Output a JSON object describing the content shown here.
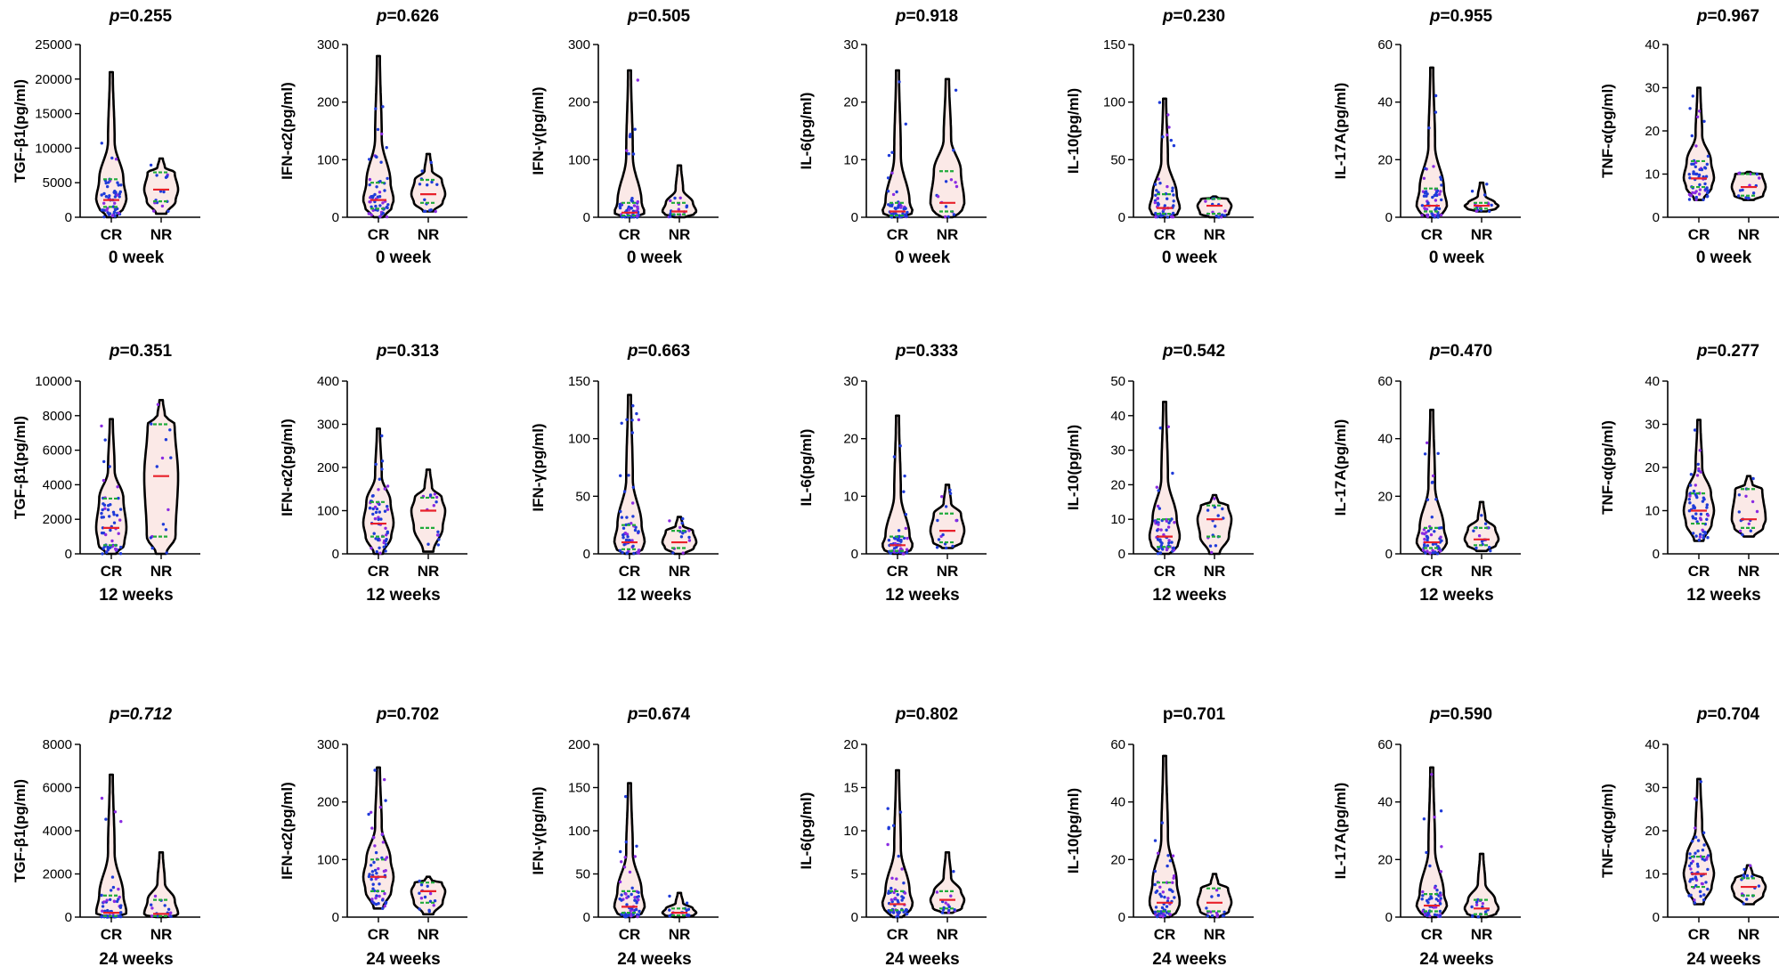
{
  "figure": {
    "description_free": true,
    "colors": {
      "violin_fill": "#fbe9e7",
      "violin_stroke": "#000000",
      "points": "#1f3bd9",
      "points_alt": "#8a2be2",
      "median": "#e8202a",
      "quartile": "#1faa3a"
    }
  },
  "chart_data": [
    {
      "type": "violin",
      "row": 0,
      "col": 0,
      "title_prefix": "p",
      "title_value": "=0.255",
      "ylabel": "TGF-β1(pg/ml)",
      "xlabel": "0 week",
      "categories": [
        "CR",
        "NR"
      ],
      "ylim": [
        0,
        25000
      ],
      "yticks": [
        0,
        5000,
        10000,
        15000,
        20000,
        25000
      ],
      "yticklabels": [
        "0",
        "5000",
        "10000",
        "15000",
        "20000",
        "25000"
      ],
      "series": [
        {
          "name": "CR",
          "min": 0,
          "q1": 1500,
          "median": 2500,
          "q3": 5500,
          "max": 21000
        },
        {
          "name": "NR",
          "min": 500,
          "q1": 2300,
          "median": 4000,
          "q3": 6500,
          "max": 8500
        }
      ]
    },
    {
      "type": "violin",
      "row": 0,
      "col": 1,
      "title_prefix": "p",
      "title_value": "=0.626",
      "ylabel": "IFN-α2(pg/ml)",
      "xlabel": "0 week",
      "categories": [
        "CR",
        "NR"
      ],
      "ylim": [
        0,
        300
      ],
      "yticks": [
        0,
        100,
        200,
        300
      ],
      "yticklabels": [
        "0",
        "100",
        "200",
        "300"
      ],
      "series": [
        {
          "name": "CR",
          "min": 0,
          "q1": 15,
          "median": 30,
          "q3": 60,
          "max": 280
        },
        {
          "name": "NR",
          "min": 10,
          "q1": 25,
          "median": 40,
          "q3": 65,
          "max": 110
        }
      ]
    },
    {
      "type": "violin",
      "row": 0,
      "col": 2,
      "title_prefix": "p",
      "title_value": "=0.505",
      "ylabel": "IFN-γ(pg/ml)",
      "xlabel": "0 week",
      "categories": [
        "CR",
        "NR"
      ],
      "ylim": [
        0,
        300
      ],
      "yticks": [
        0,
        100,
        200,
        300
      ],
      "yticklabels": [
        "0",
        "100",
        "200",
        "300"
      ],
      "series": [
        {
          "name": "CR",
          "min": 0,
          "q1": 3,
          "median": 8,
          "q3": 25,
          "max": 255
        },
        {
          "name": "NR",
          "min": 0,
          "q1": 5,
          "median": 10,
          "q3": 25,
          "max": 90
        }
      ]
    },
    {
      "type": "violin",
      "row": 0,
      "col": 3,
      "title_prefix": "p",
      "title_value": "=0.918",
      "ylabel": "IL-6(pg/ml)",
      "xlabel": "0 week",
      "categories": [
        "CR",
        "NR"
      ],
      "ylim": [
        0,
        30
      ],
      "yticks": [
        0,
        10,
        20,
        30
      ],
      "yticklabels": [
        "0",
        "10",
        "20",
        "30"
      ],
      "series": [
        {
          "name": "CR",
          "min": 0,
          "q1": 0.3,
          "median": 1,
          "q3": 2.5,
          "max": 25.5
        },
        {
          "name": "NR",
          "min": 0,
          "q1": 1,
          "median": 2.5,
          "q3": 8,
          "max": 24
        }
      ]
    },
    {
      "type": "violin",
      "row": 0,
      "col": 4,
      "title_prefix": "p",
      "title_value": "=0.230",
      "ylabel": "IL-10(pg/ml)",
      "xlabel": "0 week",
      "categories": [
        "CR",
        "NR"
      ],
      "ylim": [
        0,
        150
      ],
      "yticks": [
        0,
        50,
        100,
        150
      ],
      "yticklabels": [
        "0",
        "50",
        "100",
        "150"
      ],
      "series": [
        {
          "name": "CR",
          "min": 0,
          "q1": 3,
          "median": 8,
          "q3": 20,
          "max": 103
        },
        {
          "name": "NR",
          "min": 0,
          "q1": 3,
          "median": 10,
          "q3": 16,
          "max": 18
        }
      ]
    },
    {
      "type": "violin",
      "row": 0,
      "col": 5,
      "title_prefix": "p",
      "title_value": "=0.955",
      "ylabel": "IL-17A(pg/ml)",
      "xlabel": "0 week",
      "categories": [
        "CR",
        "NR"
      ],
      "ylim": [
        0,
        60
      ],
      "yticks": [
        0,
        20,
        40,
        60
      ],
      "yticklabels": [
        "0",
        "20",
        "40",
        "60"
      ],
      "series": [
        {
          "name": "CR",
          "min": 0,
          "q1": 2,
          "median": 4,
          "q3": 10,
          "max": 52
        },
        {
          "name": "NR",
          "min": 2,
          "q1": 3,
          "median": 4,
          "q3": 5,
          "max": 12
        }
      ]
    },
    {
      "type": "violin",
      "row": 0,
      "col": 6,
      "title_prefix": "p",
      "title_value": "=0.967",
      "ylabel": "TNF-α(pg/ml)",
      "xlabel": "0 week",
      "categories": [
        "CR",
        "NR"
      ],
      "ylim": [
        0,
        40
      ],
      "yticks": [
        0,
        10,
        20,
        30,
        40
      ],
      "yticklabels": [
        "0",
        "10",
        "20",
        "30",
        "40"
      ],
      "series": [
        {
          "name": "CR",
          "min": 4,
          "q1": 7,
          "median": 9,
          "q3": 13,
          "max": 30
        },
        {
          "name": "NR",
          "min": 4,
          "q1": 5,
          "median": 7,
          "q3": 10,
          "max": 10.5
        }
      ]
    },
    {
      "type": "violin",
      "row": 1,
      "col": 0,
      "title_prefix": "p",
      "title_value": "=0.351",
      "ylabel": "TGF-β1(pg/ml)",
      "xlabel": "12 weeks",
      "categories": [
        "CR",
        "NR"
      ],
      "ylim": [
        0,
        10000
      ],
      "yticks": [
        0,
        2000,
        4000,
        6000,
        8000,
        10000
      ],
      "yticklabels": [
        "0",
        "2000",
        "4000",
        "6000",
        "8000",
        "10000"
      ],
      "series": [
        {
          "name": "CR",
          "min": 0,
          "q1": 500,
          "median": 1500,
          "q3": 3200,
          "max": 7800
        },
        {
          "name": "NR",
          "min": 0,
          "q1": 1000,
          "median": 4500,
          "q3": 7500,
          "max": 8900
        }
      ]
    },
    {
      "type": "violin",
      "row": 1,
      "col": 1,
      "title_prefix": "p",
      "title_value": "=0.313",
      "ylabel": "IFN-α2(pg/ml)",
      "xlabel": "12 weeks",
      "categories": [
        "CR",
        "NR"
      ],
      "ylim": [
        0,
        400
      ],
      "yticks": [
        0,
        100,
        200,
        300,
        400
      ],
      "yticklabels": [
        "0",
        "100",
        "200",
        "300",
        "400"
      ],
      "series": [
        {
          "name": "CR",
          "min": 0,
          "q1": 40,
          "median": 70,
          "q3": 120,
          "max": 290
        },
        {
          "name": "NR",
          "min": 5,
          "q1": 60,
          "median": 100,
          "q3": 130,
          "max": 195
        }
      ]
    },
    {
      "type": "violin",
      "row": 1,
      "col": 2,
      "title_prefix": "p",
      "title_value": "=0.663",
      "ylabel": "IFN-γ(pg/ml)",
      "xlabel": "12 weeks",
      "categories": [
        "CR",
        "NR"
      ],
      "ylim": [
        0,
        150
      ],
      "yticks": [
        0,
        50,
        100,
        150
      ],
      "yticklabels": [
        "0",
        "50",
        "100",
        "150"
      ],
      "series": [
        {
          "name": "CR",
          "min": 0,
          "q1": 4,
          "median": 10,
          "q3": 25,
          "max": 138
        },
        {
          "name": "NR",
          "min": 0,
          "q1": 5,
          "median": 10,
          "q3": 20,
          "max": 32
        }
      ]
    },
    {
      "type": "violin",
      "row": 1,
      "col": 3,
      "title_prefix": "p",
      "title_value": "=0.333",
      "ylabel": "IL-6(pg/ml)",
      "xlabel": "12 weeks",
      "categories": [
        "CR",
        "NR"
      ],
      "ylim": [
        0,
        30
      ],
      "yticks": [
        0,
        10,
        20,
        30
      ],
      "yticklabels": [
        "0",
        "10",
        "20",
        "30"
      ],
      "series": [
        {
          "name": "CR",
          "min": 0,
          "q1": 0.5,
          "median": 1.5,
          "q3": 3,
          "max": 24
        },
        {
          "name": "NR",
          "min": 1,
          "q1": 2,
          "median": 4,
          "q3": 7,
          "max": 12
        }
      ]
    },
    {
      "type": "violin",
      "row": 1,
      "col": 4,
      "title_prefix": "p",
      "title_value": "=0.542",
      "ylabel": "IL-10(pg/ml)",
      "xlabel": "12 weeks",
      "categories": [
        "CR",
        "NR"
      ],
      "ylim": [
        0,
        50
      ],
      "yticks": [
        0,
        10,
        20,
        30,
        40,
        50
      ],
      "yticklabels": [
        "0",
        "10",
        "20",
        "30",
        "40",
        "50"
      ],
      "series": [
        {
          "name": "CR",
          "min": 0,
          "q1": 2,
          "median": 5,
          "q3": 10,
          "max": 44
        },
        {
          "name": "NR",
          "min": 0,
          "q1": 5,
          "median": 10,
          "q3": 14,
          "max": 17
        }
      ]
    },
    {
      "type": "violin",
      "row": 1,
      "col": 5,
      "title_prefix": "p",
      "title_value": "=0.470",
      "ylabel": "IL-17A(pg/ml)",
      "xlabel": "12 weeks",
      "categories": [
        "CR",
        "NR"
      ],
      "ylim": [
        0,
        60
      ],
      "yticks": [
        0,
        20,
        40,
        60
      ],
      "yticklabels": [
        "0",
        "20",
        "40",
        "60"
      ],
      "series": [
        {
          "name": "CR",
          "min": 0,
          "q1": 2,
          "median": 4,
          "q3": 9,
          "max": 50
        },
        {
          "name": "NR",
          "min": 1,
          "q1": 3,
          "median": 5,
          "q3": 9,
          "max": 18
        }
      ]
    },
    {
      "type": "violin",
      "row": 1,
      "col": 6,
      "title_prefix": "p",
      "title_value": "=0.277",
      "ylabel": "TNF-α(pg/ml)",
      "xlabel": "12 weeks",
      "categories": [
        "CR",
        "NR"
      ],
      "ylim": [
        0,
        40
      ],
      "yticks": [
        0,
        10,
        20,
        30,
        40
      ],
      "yticklabels": [
        "0",
        "10",
        "20",
        "30",
        "40"
      ],
      "series": [
        {
          "name": "CR",
          "min": 3,
          "q1": 7,
          "median": 10,
          "q3": 14,
          "max": 31
        },
        {
          "name": "NR",
          "min": 4,
          "q1": 6,
          "median": 8,
          "q3": 15,
          "max": 18
        }
      ]
    },
    {
      "type": "violin",
      "row": 2,
      "col": 0,
      "title_prefix": "p",
      "title_value": "=0.712",
      "title_italic_value": true,
      "ylabel": "TGF-β1(pg/ml)",
      "xlabel": "24 weeks",
      "categories": [
        "CR",
        "NR"
      ],
      "ylim": [
        0,
        8000
      ],
      "yticks": [
        0,
        2000,
        4000,
        6000,
        8000
      ],
      "yticklabels": [
        "0",
        "2000",
        "4000",
        "6000",
        "8000"
      ],
      "series": [
        {
          "name": "CR",
          "min": 0,
          "q1": 50,
          "median": 200,
          "q3": 1000,
          "max": 6600
        },
        {
          "name": "NR",
          "min": 0,
          "q1": 50,
          "median": 150,
          "q3": 800,
          "max": 3000
        }
      ]
    },
    {
      "type": "violin",
      "row": 2,
      "col": 1,
      "title_prefix": "p",
      "title_value": "=0.702",
      "ylabel": "IFN-α2(pg/ml)",
      "xlabel": "24 weeks",
      "categories": [
        "CR",
        "NR"
      ],
      "ylim": [
        0,
        300
      ],
      "yticks": [
        0,
        100,
        200,
        300
      ],
      "yticklabels": [
        "0",
        "100",
        "200",
        "300"
      ],
      "series": [
        {
          "name": "CR",
          "min": 15,
          "q1": 45,
          "median": 70,
          "q3": 100,
          "max": 260
        },
        {
          "name": "NR",
          "min": 5,
          "q1": 25,
          "median": 45,
          "q3": 60,
          "max": 70
        }
      ]
    },
    {
      "type": "violin",
      "row": 2,
      "col": 2,
      "title_prefix": "p",
      "title_value": "=0.674",
      "ylabel": "IFN-γ(pg/ml)",
      "xlabel": "24 weeks",
      "categories": [
        "CR",
        "NR"
      ],
      "ylim": [
        0,
        200
      ],
      "yticks": [
        0,
        50,
        100,
        150,
        200
      ],
      "yticklabels": [
        "0",
        "50",
        "100",
        "150",
        "200"
      ],
      "series": [
        {
          "name": "CR",
          "min": 0,
          "q1": 5,
          "median": 12,
          "q3": 30,
          "max": 155
        },
        {
          "name": "NR",
          "min": 0,
          "q1": 2,
          "median": 5,
          "q3": 10,
          "max": 28
        }
      ]
    },
    {
      "type": "violin",
      "row": 2,
      "col": 3,
      "title_prefix": "p",
      "title_value": "=0.802",
      "ylabel": "IL-6(pg/ml)",
      "xlabel": "24 weeks",
      "categories": [
        "CR",
        "NR"
      ],
      "ylim": [
        0,
        20
      ],
      "yticks": [
        0,
        5,
        10,
        15,
        20
      ],
      "yticklabels": [
        "0",
        "5",
        "10",
        "15",
        "20"
      ],
      "series": [
        {
          "name": "CR",
          "min": 0,
          "q1": 0.8,
          "median": 1.5,
          "q3": 3,
          "max": 17
        },
        {
          "name": "NR",
          "min": 0.5,
          "q1": 1,
          "median": 2,
          "q3": 3,
          "max": 7.5
        }
      ]
    },
    {
      "type": "violin",
      "row": 2,
      "col": 4,
      "title_prefix": "",
      "title_value": "p=0.701",
      "ylabel": "IL-10(pg/ml)",
      "xlabel": "24 weeks",
      "categories": [
        "CR",
        "NR"
      ],
      "ylim": [
        0,
        60
      ],
      "yticks": [
        0,
        20,
        40,
        60
      ],
      "yticklabels": [
        "0",
        "20",
        "40",
        "60"
      ],
      "series": [
        {
          "name": "CR",
          "min": 0,
          "q1": 2,
          "median": 5,
          "q3": 12,
          "max": 56
        },
        {
          "name": "NR",
          "min": 0,
          "q1": 2,
          "median": 5,
          "q3": 10,
          "max": 15
        }
      ]
    },
    {
      "type": "violin",
      "row": 2,
      "col": 5,
      "title_prefix": "p",
      "title_value": "=0.590",
      "ylabel": "IL-17A(pg/ml)",
      "xlabel": "24 weeks",
      "categories": [
        "CR",
        "NR"
      ],
      "ylim": [
        0,
        60
      ],
      "yticks": [
        0,
        20,
        40,
        60
      ],
      "yticklabels": [
        "0",
        "20",
        "40",
        "60"
      ],
      "series": [
        {
          "name": "CR",
          "min": 0,
          "q1": 2,
          "median": 4,
          "q3": 8,
          "max": 52
        },
        {
          "name": "NR",
          "min": 0,
          "q1": 1,
          "median": 3,
          "q3": 6,
          "max": 22
        }
      ]
    },
    {
      "type": "violin",
      "row": 2,
      "col": 6,
      "title_prefix": "p",
      "title_value": "=0.704",
      "ylabel": "TNF-α(pg/ml)",
      "xlabel": "24 weeks",
      "categories": [
        "CR",
        "NR"
      ],
      "ylim": [
        0,
        40
      ],
      "yticks": [
        0,
        10,
        20,
        30,
        40
      ],
      "yticklabels": [
        "0",
        "10",
        "20",
        "30",
        "40"
      ],
      "series": [
        {
          "name": "CR",
          "min": 3,
          "q1": 7,
          "median": 10,
          "q3": 14,
          "max": 32
        },
        {
          "name": "NR",
          "min": 3,
          "q1": 5,
          "median": 7,
          "q3": 9,
          "max": 12
        }
      ]
    }
  ]
}
